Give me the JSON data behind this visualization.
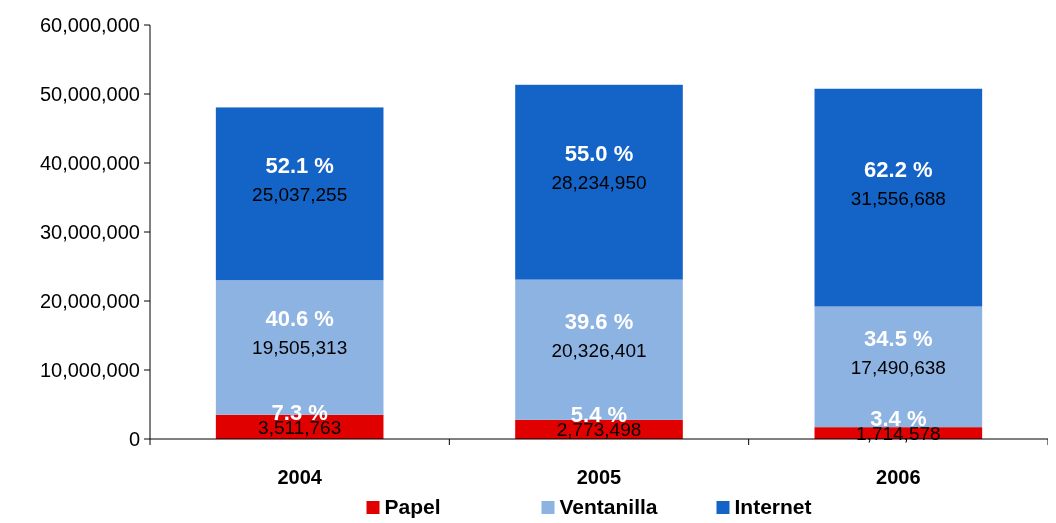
{
  "chart_data": {
    "type": "bar",
    "stacked": true,
    "categories": [
      "2004",
      "2005",
      "2006"
    ],
    "series": [
      {
        "name": "Papel",
        "color": "#e00000",
        "values": [
          3511763,
          2773498,
          1714578
        ],
        "value_labels": [
          "3,511,763",
          "2,773,498",
          "1,714,578"
        ]
      },
      {
        "name": "Ventanilla",
        "color": "#8db3e2",
        "values": [
          19505313,
          20326401,
          17490638
        ],
        "value_labels": [
          "19,505,313",
          "20,326,401",
          "17,490,638"
        ]
      },
      {
        "name": "Internet",
        "color": "#1464c8",
        "values": [
          25037255,
          28234950,
          31556688
        ],
        "value_labels": [
          "25,037,255",
          "28,234,950",
          "31,556,688"
        ]
      }
    ],
    "ylim": [
      0,
      60000000
    ],
    "yticks": [
      {
        "value": 0,
        "label": "0"
      },
      {
        "value": 10000000,
        "label": "10,000,000"
      },
      {
        "value": 20000000,
        "label": "20,000,000"
      },
      {
        "value": 30000000,
        "label": "30,000,000"
      },
      {
        "value": 40000000,
        "label": "40,000,000"
      },
      {
        "value": 50000000,
        "label": "50,000,000"
      },
      {
        "value": 60000000,
        "label": "60,000,000"
      }
    ],
    "legend": "bottom",
    "annotations": [
      "7.3 %",
      "40.6 %",
      "52.1 %",
      "5.4 %",
      "39.6 %",
      "55.0 %",
      "3.4 %",
      "34.5 %",
      "62.2 %"
    ]
  }
}
